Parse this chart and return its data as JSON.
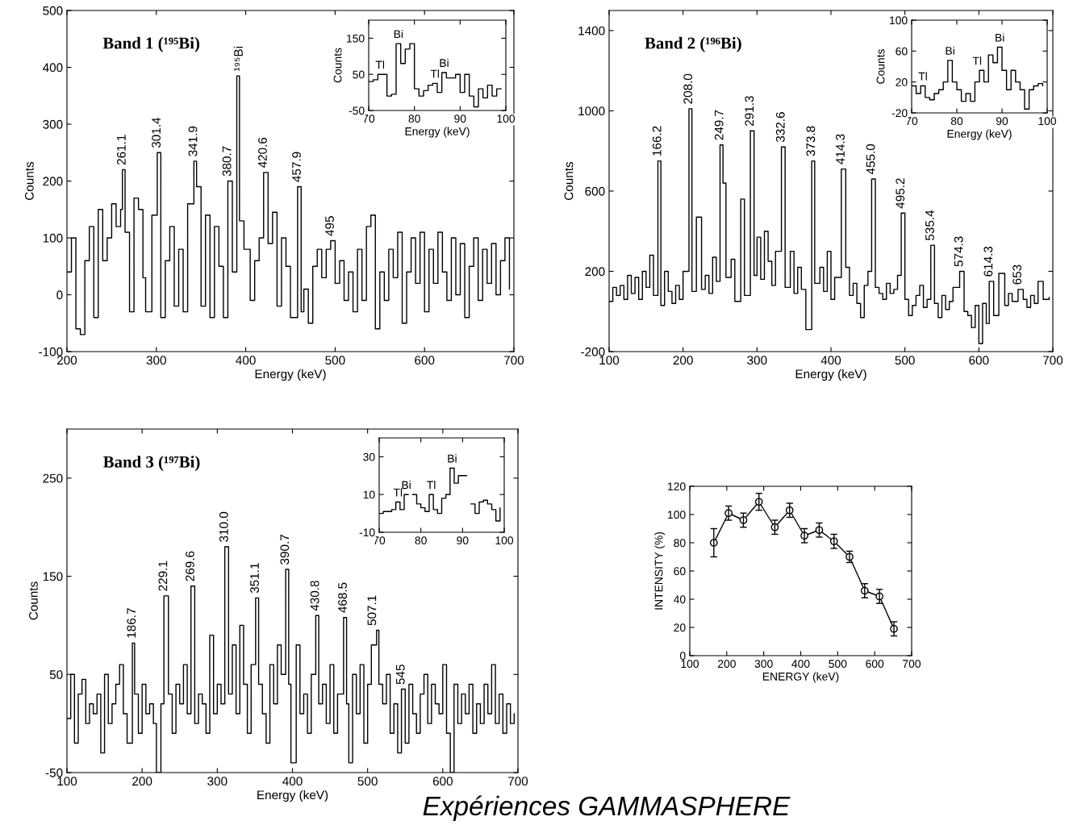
{
  "chart_data": [
    {
      "type": "step",
      "title": "Band 1 (¹⁹⁵Bi)",
      "xlabel": "Energy (keV)",
      "ylabel": "Counts",
      "xlim": [
        200,
        700
      ],
      "ylim": [
        -100,
        500
      ],
      "xticks": [
        200,
        300,
        400,
        500,
        600,
        700
      ],
      "yticks": [
        -100,
        0,
        100,
        200,
        300,
        400,
        500
      ],
      "color": "#000000",
      "x": [
        200,
        205,
        210,
        215,
        220,
        225,
        230,
        235,
        240,
        245,
        250,
        255,
        260,
        262,
        265,
        270,
        275,
        280,
        285,
        288,
        295,
        301,
        305,
        310,
        315,
        320,
        325,
        330,
        335,
        342,
        345,
        350,
        355,
        360,
        365,
        370,
        375,
        380,
        385,
        390,
        393,
        398,
        405,
        410,
        415,
        420,
        425,
        430,
        435,
        440,
        445,
        450,
        458,
        462,
        465,
        470,
        475,
        480,
        485,
        490,
        495,
        500,
        505,
        510,
        515,
        520,
        525,
        530,
        535,
        540,
        545,
        550,
        555,
        560,
        565,
        570,
        575,
        580,
        585,
        590,
        595,
        600,
        605,
        610,
        615,
        620,
        625,
        630,
        635,
        640,
        645,
        650,
        655,
        660,
        665,
        670,
        675,
        680,
        685,
        690,
        695
      ],
      "values": [
        40,
        100,
        -60,
        -70,
        60,
        120,
        -40,
        150,
        60,
        100,
        160,
        120,
        150,
        220,
        110,
        -30,
        170,
        150,
        30,
        -30,
        140,
        250,
        -40,
        60,
        120,
        -20,
        80,
        -30,
        160,
        235,
        190,
        -20,
        140,
        -40,
        120,
        50,
        -40,
        200,
        40,
        385,
        130,
        80,
        -10,
        60,
        100,
        215,
        90,
        145,
        -20,
        100,
        50,
        -40,
        190,
        -30,
        10,
        -50,
        50,
        80,
        30,
        80,
        95,
        20,
        60,
        -10,
        40,
        -30,
        80,
        -10,
        120,
        140,
        -60,
        40,
        -10,
        80,
        30,
        110,
        -50,
        40,
        100,
        20,
        110,
        -30,
        80,
        20,
        110,
        40,
        -10,
        100,
        0,
        90,
        -40,
        50,
        100,
        -10,
        80,
        20,
        90,
        0,
        60,
        100,
        10
      ],
      "annotations": [
        {
          "text": "261.1",
          "x": 262,
          "y": 220
        },
        {
          "text": "301.4",
          "x": 301,
          "y": 250
        },
        {
          "text": "341.9",
          "x": 342,
          "y": 235
        },
        {
          "text": "380.7",
          "x": 380,
          "y": 200
        },
        {
          "text": "¹⁹⁵Bi",
          "x": 393,
          "y": 385
        },
        {
          "text": "420.6",
          "x": 420,
          "y": 215
        },
        {
          "text": "457.9",
          "x": 458,
          "y": 190
        },
        {
          "text": "495",
          "x": 495,
          "y": 95
        }
      ]
    },
    {
      "type": "step",
      "title": "Band 2 (¹⁹⁶Bi)",
      "xlabel": "Energy (keV)",
      "ylabel": "Counts",
      "xlim": [
        100,
        700
      ],
      "ylim": [
        -200,
        1500
      ],
      "xticks": [
        100,
        200,
        300,
        400,
        500,
        600,
        700
      ],
      "yticks": [
        -200,
        200,
        600,
        1000,
        1400
      ],
      "color": "#000000",
      "x": [
        100,
        105,
        110,
        115,
        120,
        125,
        130,
        135,
        140,
        145,
        150,
        155,
        160,
        166,
        170,
        175,
        180,
        185,
        190,
        195,
        200,
        208,
        212,
        218,
        225,
        230,
        235,
        240,
        245,
        250,
        254,
        258,
        265,
        270,
        278,
        283,
        291,
        296,
        300,
        305,
        310,
        315,
        320,
        325,
        333,
        338,
        345,
        350,
        355,
        360,
        366,
        374,
        378,
        385,
        390,
        395,
        400,
        405,
        414,
        420,
        425,
        430,
        435,
        440,
        445,
        450,
        455,
        460,
        465,
        470,
        475,
        480,
        485,
        490,
        495,
        500,
        505,
        510,
        515,
        520,
        525,
        530,
        535,
        540,
        545,
        550,
        555,
        560,
        565,
        574,
        580,
        585,
        590,
        595,
        600,
        605,
        610,
        614,
        620,
        627,
        635,
        640,
        645,
        653,
        660,
        665,
        670,
        675,
        680,
        687,
        695
      ],
      "values": [
        50,
        120,
        80,
        130,
        60,
        180,
        90,
        170,
        60,
        200,
        120,
        280,
        80,
        750,
        30,
        200,
        100,
        40,
        130,
        60,
        200,
        1010,
        100,
        470,
        110,
        180,
        90,
        270,
        150,
        830,
        640,
        170,
        260,
        50,
        560,
        80,
        900,
        180,
        370,
        160,
        400,
        250,
        130,
        300,
        820,
        120,
        300,
        90,
        220,
        110,
        -90,
        750,
        140,
        220,
        100,
        300,
        60,
        170,
        710,
        220,
        80,
        140,
        40,
        -30,
        130,
        200,
        660,
        120,
        90,
        60,
        140,
        90,
        110,
        180,
        490,
        60,
        -20,
        30,
        80,
        130,
        20,
        60,
        330,
        40,
        -30,
        80,
        10,
        50,
        120,
        200,
        0,
        -20,
        -80,
        30,
        -160,
        40,
        -60,
        150,
        -20,
        190,
        30,
        90,
        50,
        110,
        60,
        20,
        80,
        40,
        150,
        60,
        70
      ],
      "annotations": [
        {
          "text": "166.2",
          "x": 166,
          "y": 750
        },
        {
          "text": "208.0",
          "x": 208,
          "y": 1010
        },
        {
          "text": "249.7",
          "x": 250,
          "y": 830
        },
        {
          "text": "291.3",
          "x": 291,
          "y": 900
        },
        {
          "text": "332.6",
          "x": 333,
          "y": 820
        },
        {
          "text": "373.8",
          "x": 374,
          "y": 750
        },
        {
          "text": "414.3",
          "x": 414,
          "y": 710
        },
        {
          "text": "455.0",
          "x": 455,
          "y": 660
        },
        {
          "text": "495.2",
          "x": 495,
          "y": 490
        },
        {
          "text": "535.4",
          "x": 535,
          "y": 330
        },
        {
          "text": "574.3",
          "x": 574,
          "y": 200
        },
        {
          "text": "614.3",
          "x": 614,
          "y": 150
        },
        {
          "text": "653",
          "x": 653,
          "y": 110
        }
      ]
    },
    {
      "type": "step",
      "title": "Band 3 (¹⁹⁷Bi)",
      "xlabel": "Energy (keV)",
      "ylabel": "Counts",
      "xlim": [
        100,
        700
      ],
      "ylim": [
        -50,
        300
      ],
      "xticks": [
        100,
        200,
        300,
        400,
        500,
        600,
        700
      ],
      "yticks": [
        -50,
        50,
        150,
        250
      ],
      "color": "#000000",
      "x": [
        100,
        105,
        110,
        115,
        120,
        125,
        130,
        135,
        140,
        145,
        150,
        155,
        160,
        165,
        170,
        175,
        180,
        187,
        190,
        195,
        200,
        205,
        210,
        215,
        219,
        225,
        229,
        235,
        240,
        245,
        250,
        255,
        260,
        265,
        270,
        275,
        280,
        285,
        290,
        295,
        300,
        305,
        310,
        315,
        320,
        325,
        330,
        335,
        340,
        345,
        351,
        355,
        360,
        365,
        370,
        375,
        380,
        385,
        391,
        395,
        398,
        405,
        410,
        415,
        420,
        425,
        431,
        435,
        440,
        445,
        450,
        455,
        460,
        468,
        472,
        475,
        480,
        485,
        490,
        495,
        500,
        505,
        512,
        515,
        520,
        525,
        530,
        535,
        540,
        545,
        550,
        555,
        560,
        565,
        570,
        575,
        580,
        585,
        590,
        595,
        600,
        605,
        610,
        615,
        620,
        625,
        630,
        635,
        640,
        645,
        650,
        655,
        660,
        665,
        670,
        675,
        680,
        685,
        690,
        695
      ],
      "values": [
        5,
        50,
        -20,
        30,
        45,
        0,
        20,
        10,
        30,
        -30,
        50,
        0,
        20,
        40,
        60,
        10,
        -20,
        82,
        30,
        -10,
        40,
        10,
        20,
        0,
        -50,
        20,
        130,
        30,
        -10,
        40,
        20,
        60,
        10,
        140,
        0,
        30,
        20,
        -10,
        90,
        10,
        40,
        20,
        180,
        30,
        80,
        10,
        100,
        40,
        -10,
        60,
        128,
        40,
        10,
        -20,
        60,
        20,
        80,
        50,
        157,
        40,
        -40,
        80,
        10,
        30,
        -10,
        50,
        110,
        20,
        40,
        0,
        60,
        -10,
        30,
        108,
        20,
        -40,
        50,
        10,
        60,
        -20,
        40,
        80,
        95,
        40,
        20,
        50,
        -10,
        20,
        -30,
        35,
        -20,
        40,
        10,
        -10,
        30,
        50,
        0,
        40,
        20,
        10,
        60,
        -10,
        -50,
        40,
        0,
        30,
        10,
        40,
        -10,
        20,
        0,
        40,
        10,
        60,
        0,
        30,
        -10,
        20,
        0,
        10
      ],
      "annotations": [
        {
          "text": "186.7",
          "x": 187,
          "y": 82
        },
        {
          "text": "229.1",
          "x": 229,
          "y": 130
        },
        {
          "text": "269.6",
          "x": 265,
          "y": 140
        },
        {
          "text": "310.0",
          "x": 310,
          "y": 180
        },
        {
          "text": "351.1",
          "x": 351,
          "y": 128
        },
        {
          "text": "390.7",
          "x": 391,
          "y": 157
        },
        {
          "text": "430.8",
          "x": 431,
          "y": 110
        },
        {
          "text": "468.5",
          "x": 468,
          "y": 108
        },
        {
          "text": "507.1",
          "x": 507,
          "y": 95
        },
        {
          "text": "545",
          "x": 545,
          "y": 35
        }
      ]
    },
    {
      "type": "line",
      "xlabel": "ENERGY (keV)",
      "ylabel": "INTENSITY (%)",
      "xlim": [
        100,
        700
      ],
      "ylim": [
        0,
        120
      ],
      "xticks": [
        100,
        200,
        300,
        400,
        500,
        600,
        700
      ],
      "yticks": [
        0,
        20,
        40,
        60,
        80,
        100,
        120
      ],
      "color": "#000000",
      "marker": "circle",
      "x": [
        165,
        205,
        245,
        287,
        330,
        370,
        410,
        450,
        490,
        532,
        573,
        613,
        652
      ],
      "values": [
        80,
        101,
        96,
        109,
        91,
        103,
        85,
        89,
        81,
        70,
        46,
        42,
        19
      ],
      "errors": [
        10,
        5,
        5,
        6,
        5,
        5,
        5,
        5,
        5,
        4,
        5,
        5,
        5
      ],
      "annotations": [
        "Expériences GAMMASPHERE"
      ]
    },
    {
      "type": "step",
      "xlabel": "Energy (keV)",
      "ylabel": "Counts",
      "xlim": [
        70,
        100
      ],
      "ylim": [
        -50,
        200
      ],
      "xticks": [
        70,
        80,
        90,
        100
      ],
      "yticks": [
        -50,
        50,
        150
      ],
      "color": "#000000",
      "x": [
        70,
        71,
        72,
        73,
        74,
        75,
        76,
        77,
        78,
        79,
        80,
        81,
        82,
        83,
        84,
        85,
        86,
        87,
        88,
        89,
        90,
        91,
        92,
        93,
        94,
        95,
        96,
        97,
        98,
        99
      ],
      "values": [
        30,
        35,
        50,
        50,
        -10,
        -5,
        135,
        80,
        120,
        135,
        10,
        -10,
        5,
        20,
        25,
        0,
        55,
        40,
        40,
        50,
        0,
        50,
        -10,
        -40,
        10,
        -15,
        20,
        -10,
        10,
        10
      ],
      "annotations": [
        {
          "text": "Tl",
          "x": 72.5,
          "y": 50
        },
        {
          "text": "Bi",
          "x": 76.5,
          "y": 135
        },
        {
          "text": "Tl",
          "x": 84.5,
          "y": 25
        },
        {
          "text": "Bi",
          "x": 86.5,
          "y": 55
        }
      ]
    },
    {
      "type": "step",
      "xlabel": "Energy (keV)",
      "ylabel": "Counts",
      "xlim": [
        70,
        100
      ],
      "ylim": [
        -20,
        100
      ],
      "xticks": [
        70,
        80,
        90,
        100
      ],
      "yticks": [
        -20,
        20,
        60,
        100
      ],
      "color": "#000000",
      "x": [
        70,
        71,
        72,
        73,
        74,
        75,
        76,
        77,
        78,
        79,
        80,
        81,
        82,
        83,
        84,
        85,
        86,
        87,
        88,
        89,
        90,
        91,
        92,
        93,
        94,
        95,
        96,
        97,
        98,
        99
      ],
      "values": [
        15,
        5,
        15,
        0,
        -3,
        5,
        10,
        20,
        48,
        20,
        10,
        -5,
        5,
        -5,
        20,
        35,
        20,
        55,
        45,
        65,
        35,
        10,
        35,
        20,
        10,
        -15,
        10,
        15,
        18,
        15
      ],
      "annotations": [
        {
          "text": "Tl",
          "x": 72.5,
          "y": 15
        },
        {
          "text": "Bi",
          "x": 78.5,
          "y": 48
        },
        {
          "text": "Tl",
          "x": 84.5,
          "y": 35
        },
        {
          "text": "Bi",
          "x": 89.5,
          "y": 65
        }
      ]
    },
    {
      "type": "step",
      "xlim": [
        70,
        100
      ],
      "ylim": [
        -10,
        40
      ],
      "xticks": [
        70,
        80,
        90,
        100
      ],
      "yticks": [
        -10,
        10,
        30
      ],
      "color": "#000000",
      "x": [
        70,
        71,
        72,
        73,
        74,
        75,
        76,
        77,
        78,
        79,
        80,
        81,
        82,
        83,
        84,
        85,
        86,
        87,
        88,
        89,
        90,
        91,
        92,
        93,
        94,
        95,
        96,
        97,
        98,
        99
      ],
      "values": [
        0,
        1,
        1,
        2,
        6,
        2,
        10,
        null,
        10,
        5,
        3,
        1,
        10,
        2,
        0,
        8,
        10,
        24,
        16,
        20,
        20,
        null,
        5,
        0,
        6,
        7,
        5,
        2,
        -4,
        3
      ],
      "annotations": [
        {
          "text": "Tl",
          "x": 74.5,
          "y": 6
        },
        {
          "text": "Bi",
          "x": 76.5,
          "y": 10
        },
        {
          "text": "Tl",
          "x": 82.5,
          "y": 10
        },
        {
          "text": "Bi",
          "x": 87.5,
          "y": 24
        }
      ]
    }
  ]
}
